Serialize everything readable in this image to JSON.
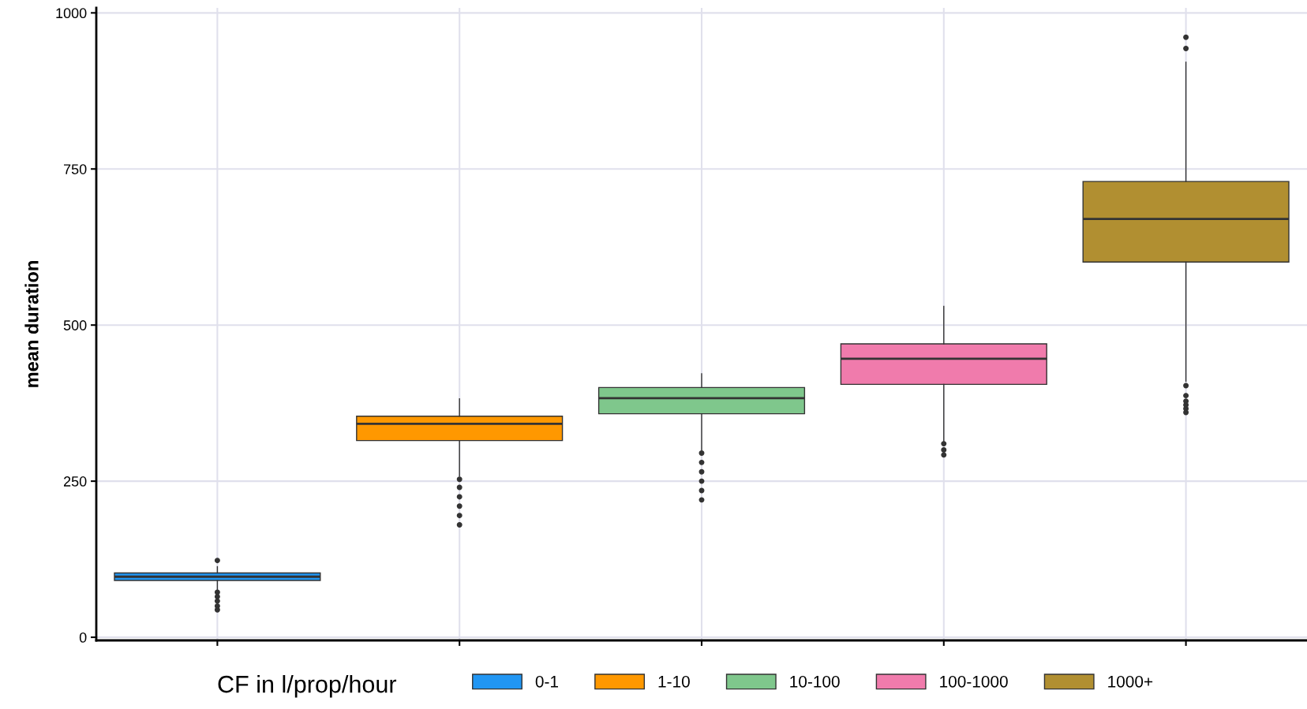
{
  "chart_data": {
    "type": "box",
    "ylabel": "mean duration",
    "legend_title": "CF in l/prop/hour",
    "legend": "bottom",
    "grid": true,
    "tick_labels": "y",
    "categories": [
      null,
      null,
      null,
      null,
      null
    ],
    "ylim": [
      -5,
      1008
    ],
    "yticks": [
      0,
      250,
      500,
      750,
      1000
    ],
    "series": [
      {
        "name": "0-1",
        "color": "#2196f3",
        "boxes": [
          {
            "low": 76,
            "q1": 91,
            "median": 97,
            "q3": 103,
            "high": 113,
            "outliers": [
              123,
              72,
              65,
              58,
              50,
              44
            ]
          },
          null,
          null,
          null,
          null
        ]
      },
      {
        "name": "1-10",
        "color": "#ff9800",
        "boxes": [
          null,
          {
            "low": 258,
            "q1": 315,
            "median": 342,
            "q3": 354,
            "high": 382,
            "outliers": [
              253,
              240,
              225,
              210,
              195,
              180
            ]
          },
          null,
          null,
          null
        ]
      },
      {
        "name": "10-100",
        "color": "#7fc78c",
        "boxes": [
          null,
          null,
          {
            "low": 300,
            "q1": 358,
            "median": 383,
            "q3": 400,
            "high": 422,
            "outliers": [
              295,
              280,
              265,
              250,
              235,
              220
            ]
          },
          null,
          null
        ]
      },
      {
        "name": "100-1000",
        "color": "#f07bac",
        "boxes": [
          null,
          null,
          null,
          {
            "low": 314,
            "q1": 405,
            "median": 446,
            "q3": 470,
            "high": 530,
            "outliers": [
              310,
              300,
              292
            ]
          },
          null
        ]
      },
      {
        "name": "1000+",
        "color": "#b18f31",
        "boxes": [
          null,
          null,
          null,
          null,
          {
            "low": 410,
            "q1": 601,
            "median": 670,
            "q3": 730,
            "high": 921,
            "outliers": [
              961,
              943,
              403,
              387,
              378,
              372,
              366,
              360
            ]
          }
        ]
      }
    ]
  }
}
